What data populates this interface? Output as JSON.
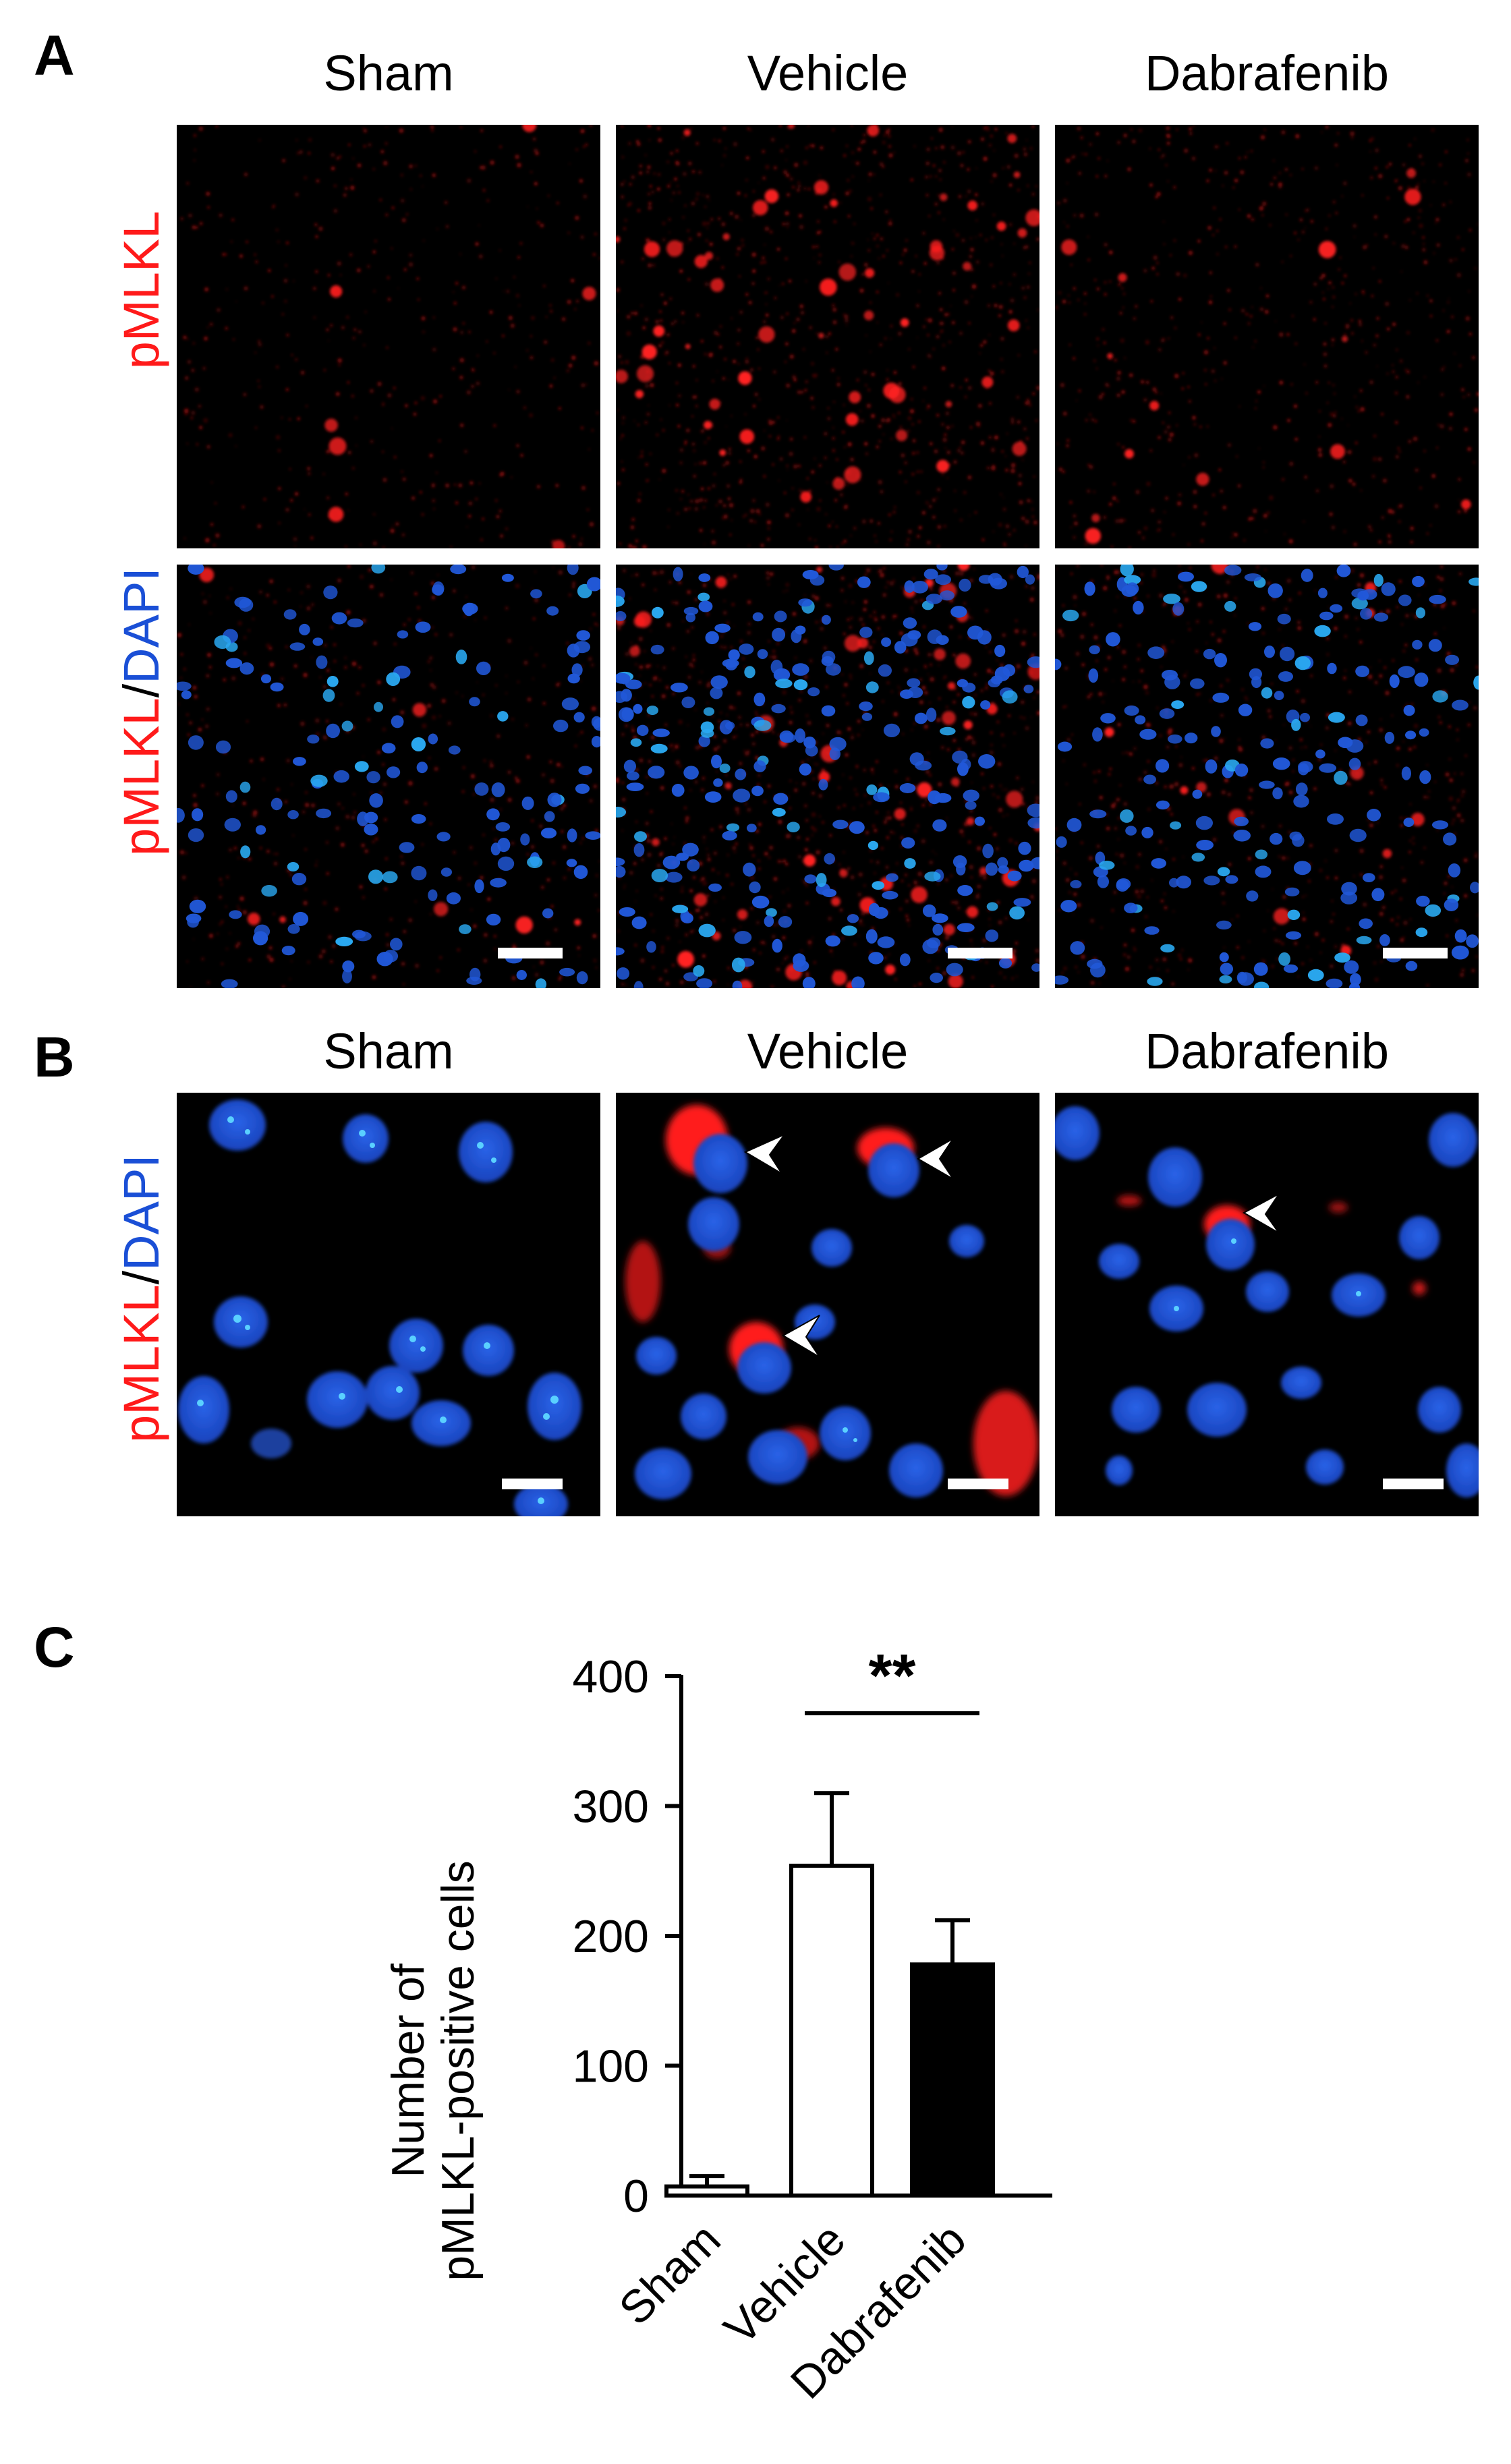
{
  "panels": {
    "a": {
      "letter": "A",
      "columns": [
        "Sham",
        "Vehicle",
        "Dabrafenib"
      ],
      "row_labels": {
        "top": {
          "marker": "pMLKL"
        },
        "bottom": {
          "marker": "pMLKL",
          "sep": "/",
          "stain": "DAPI"
        }
      }
    },
    "b": {
      "letter": "B",
      "columns": [
        "Sham",
        "Vehicle",
        "Dabrafenib"
      ],
      "row_label": {
        "marker": "pMLKL",
        "sep": "/",
        "stain": "DAPI"
      }
    },
    "c": {
      "letter": "C"
    }
  },
  "colors": {
    "pmlkl": "#ff1a1a",
    "dapi": "#1a4fd6",
    "background": "#000000"
  },
  "chart_data": {
    "type": "bar",
    "categories": [
      "Sham",
      "Vehicle",
      "Dabrafenib"
    ],
    "values": [
      7,
      254,
      178
    ],
    "errors": [
      8,
      56,
      34
    ],
    "bar_fill": [
      "#ffffff",
      "#ffffff",
      "#000000"
    ],
    "ylabel_line1": "Number of",
    "ylabel_line2": "pMLKL-positive cells",
    "ylim": [
      0,
      400
    ],
    "yticks": [
      0,
      100,
      200,
      300,
      400
    ],
    "significance": {
      "from": "Vehicle",
      "to": "Dabrafenib",
      "label": "**"
    },
    "grid": false,
    "legend": "none"
  }
}
